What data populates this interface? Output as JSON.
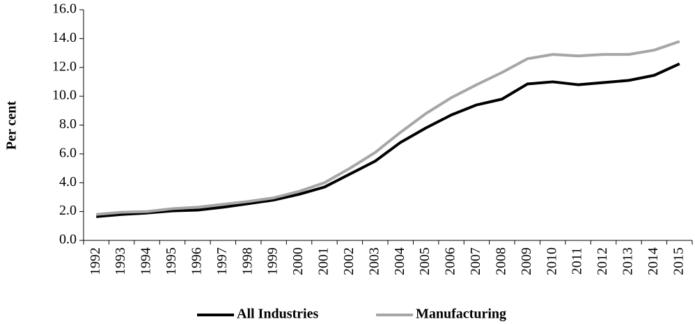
{
  "chart_data": {
    "type": "line",
    "y_label": "Per cent",
    "categories": [
      "1992",
      "1993",
      "1994",
      "1995",
      "1996",
      "1997",
      "1998",
      "1999",
      "2000",
      "2001",
      "2002",
      "2003",
      "2004",
      "2005",
      "2006",
      "2007",
      "2008",
      "2009",
      "2010",
      "2011",
      "2012",
      "2013",
      "2014",
      "2015"
    ],
    "series": [
      {
        "name": "All Industries",
        "color": "#000000",
        "values": [
          1.65,
          1.8,
          1.9,
          2.05,
          2.1,
          2.3,
          2.55,
          2.8,
          3.2,
          3.7,
          4.6,
          5.5,
          6.8,
          7.8,
          8.7,
          9.4,
          9.8,
          10.85,
          11.0,
          10.8,
          10.95,
          11.1,
          11.45,
          12.25
        ]
      },
      {
        "name": "Manufacturing",
        "color": "#a6a6a6",
        "values": [
          1.8,
          1.95,
          2.0,
          2.2,
          2.3,
          2.5,
          2.7,
          2.95,
          3.4,
          4.0,
          5.0,
          6.1,
          7.5,
          8.8,
          9.9,
          10.8,
          11.65,
          12.6,
          12.9,
          12.8,
          12.9,
          12.9,
          13.2,
          13.8
        ]
      }
    ],
    "ylim": [
      0,
      16
    ],
    "yticks": [
      {
        "value": 0,
        "label": "0.0"
      },
      {
        "value": 2,
        "label": "2.0"
      },
      {
        "value": 4,
        "label": "4.0"
      },
      {
        "value": 6,
        "label": "6.0"
      },
      {
        "value": 8,
        "label": "8.0"
      },
      {
        "value": 10,
        "label": "10.0"
      },
      {
        "value": 12,
        "label": "12.0"
      },
      {
        "value": 14,
        "label": "14.0"
      },
      {
        "value": 16,
        "label": "16.0"
      }
    ],
    "legend": "bottom"
  }
}
